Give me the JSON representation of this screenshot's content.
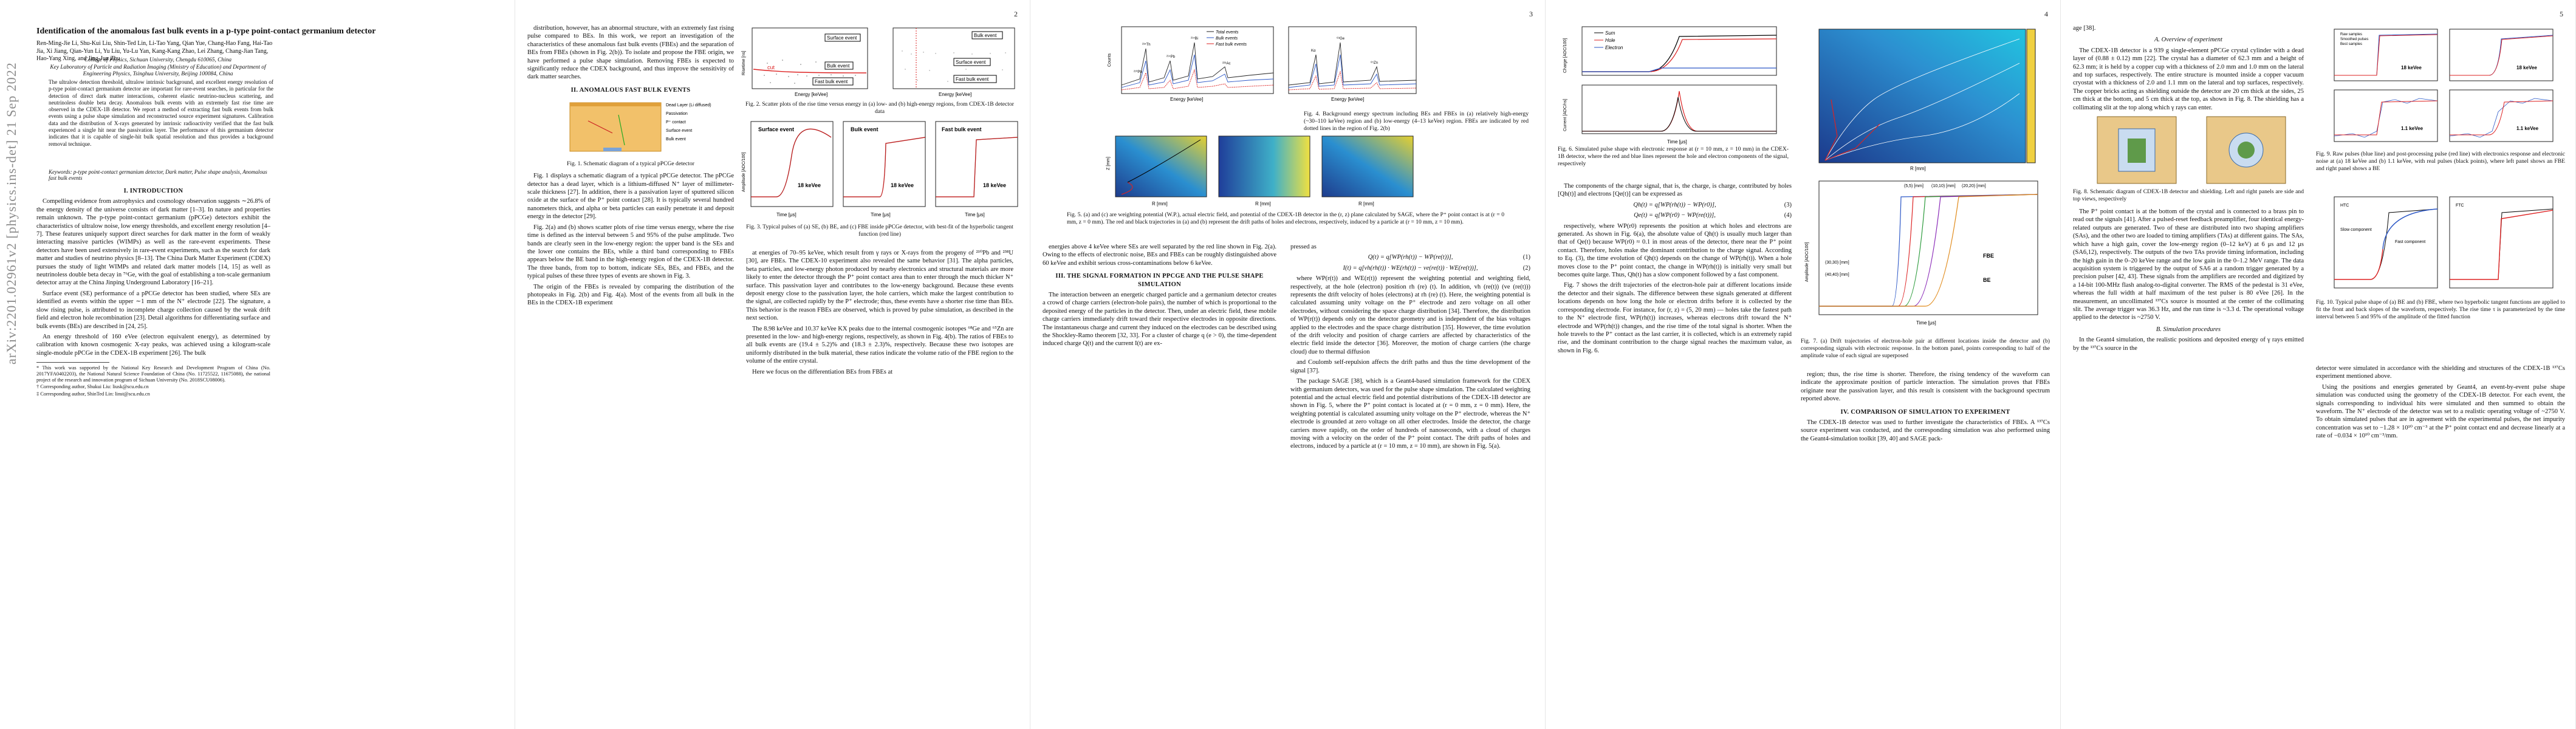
{
  "arxiv_stamp": "arXiv:2201.02961v2  [physics.ins-det]  21 Sep 2022",
  "page_numbers": [
    "",
    "2",
    "3",
    "4",
    "5"
  ],
  "p1": {
    "title": "Identification of the anomalous fast bulk events in a p-type point-contact germanium detector",
    "authors": "Ren-Ming-Jie Li, Shu-Kui Liu, Shin-Ted Lin, Li-Tao Yang, Qian Yue, Chang-Hao Fang, Hai-Tao Jia, Xi Jiang, Qian-Yun Li, Yu Liu, Yu-Lu Yan, Kang-Kang Zhao, Lei Zhang, Chang-Jian Tang, Hao-Yang Xing, and Jing-Jun Zhu",
    "affil1": "College of Physics, Sichuan University, Chengdu 610065, China",
    "affil2": "Key Laboratory of Particle and Radiation Imaging (Ministry of Education) and Department of Engineering Physics, Tsinghua University, Beijing 100084, China",
    "abstract": "The ultralow detection threshold, ultralow intrinsic background, and excellent energy resolution of p-type point-contact germanium detector are important for rare-event searches, in particular for the detection of direct dark matter interactions, coherent elastic neutrino-nucleus scattering, and neutrinoless double beta decay. Anomalous bulk events with an extremely fast rise time are observed in the CDEX-1B detector. We report a method of extracting fast bulk events from bulk events using a pulse shape simulation and reconstructed source experiment signatures. Calibration data and the distribution of X-rays generated by intrinsic radioactivity verified that the fast bulk experienced a single hit near the passivation layer. The performance of this germanium detector indicates that it is capable of single-hit bulk spatial resolution and thus provides a background removal technique.",
    "keywords": "Keywords: p-type point-contact germanium detector, Dark matter, Pulse shape analysis, Anomalous fast bulk events",
    "sec1": "I.   INTRODUCTION",
    "intro1": "Compelling evidence from astrophysics and cosmology observation suggests ∼26.8% of the energy density of the universe consists of dark matter [1–3]. In nature and properties remain unknown. The p-type point-contact germanium (pPCGe) detectors exhibit the characteristics of ultralow noise, low energy thresholds, and excellent energy resolution [4–7]. These features uniquely support direct searches for dark matter in the form of weakly interacting massive particles (WIMPs) as well as the rare-event experiments. These detectors have been used extensively in rare-event experiments, such as the search for dark matter and studies of neutrino physics [8–13]. The China Dark Matter Experiment (CDEX) pursues the study of light WIMPs and related dark matter models [14, 15] as well as neutrinoless double beta decay in ⁷⁶Ge, with the goal of establishing a ton-scale germanium detector array at the China Jinping Underground Laboratory [16–21].",
    "intro2": "Surface event (SE) performance of a pPCGe detector has been studied, where SEs are identified as events within the upper ∼1 mm of the N⁺ electrode [22]. The signature, a slow rising pulse, is attributed to incomplete charge collection caused by the weak drift field and electron hole recombination [23]. Detail algorithms for differentiating surface and bulk events (BEs) are described in [24, 25].",
    "intro3": "An energy threshold of 160 eVee (electron equivalent energy), as determined by calibration with known cosmogenic X-ray peaks, was achieved using a kilogram-scale single-module pPCGe in the CDEX-1B experiment [26]. The bulk",
    "footnote1": "* This work was supported by the National Key Research and Development Program of China (No. 2017YFA0402203), the National Natural Science Foundation of China (No. 11725522, 11675088), the national project of the research and innovation program of Sichuan University (No. 2018SCU08006).",
    "footnote2": "† Corresponding author, Shukui Liu: liusk@scu.edu.cn",
    "footnote3": "‡ Corresponding author, ShinTed Lin: linst@scu.edu.cn"
  },
  "p2": {
    "fig2_a_labels": [
      "Surface event",
      "cut",
      "Bulk event",
      "Fast bulk event"
    ],
    "fig2_b_labels": [
      "Bulk event",
      "Surface event",
      "Fast bulk event"
    ],
    "fig2_xlabel": "Energy [keVee]",
    "fig2_ylabel": "Risetime [ns]",
    "fig2_caption": "Fig. 2. Scatter plots of the rise time versus energy in (a) low- and (b) high-energy regions, from CDEX-1B detector data",
    "fig3_labels": [
      "Surface event",
      "Bulk event",
      "Fast bulk event"
    ],
    "fig3_energy": "18 keVee",
    "fig3_xlabel": "Time [μs]",
    "fig3_ylabel": "Amplitude [ADC/100]",
    "fig3_caption": "Fig. 3. Typical pulses of (a) SE, (b) BE, and (c) FBE inside pPCGe detector, with best-fit of the hyperbolic tangent function (red line)",
    "intro4": "distribution, however, has an abnormal structure, with an extremely fast rising pulse compared to BEs. In this work, we report an investigation of the characteristics of these anomalous fast bulk events (FBEs) and the separation of BEs from FBEs (shown in Fig. 2(b)). To isolate and propose the FBE origin, we have performed a pulse shape simulation. Removing FBEs is expected to significantly reduce the CDEX background, and thus improve the sensitivity of dark matter searches.",
    "sec2": "II.   ANOMALOUS FAST BULK EVENTS",
    "fig1_labels": [
      "Dead Layer (Li diffused)",
      "Passivation",
      "P⁺ contact",
      "Surface event",
      "Bulk event"
    ],
    "fig1_caption": "Fig. 1. Schematic diagram of a typical pPCGe detector",
    "sec2_p1": "Fig. 1 displays a schematic diagram of a typical pPCGe detector. The pPCGe detector has a dead layer, which is a lithium-diffused N⁺ layer of millimeter-scale thickness [27]. In addition, there is a passivation layer of sputtered silicon oxide at the surface of the P⁺ point contact [28]. It is typically several hundred nanometers thick, and alpha or beta particles can easily penetrate it and deposit energy in the detector [29].",
    "sec2_p2": "Fig. 2(a) and (b) shows scatter plots of rise time versus energy, where the rise time is defined as the interval between 5 and 95% of the pulse amplitude. Two bands are clearly seen in the low-energy region: the upper band is the SEs and the lower one contains the BEs, while a third band corresponding to FBEs appears below the BE band in the high-energy region of the CDEX-1B detector. The three bands, from top to bottom, indicate SEs, BEs, and FBEs, and the typical pulses of these three types of events are shown in Fig. 3.",
    "sec2_p3": "The origin of the FBEs is revealed by comparing the distribution of the photopeaks in Fig. 2(b) and Fig. 4(a). Most of the events from all bulk in the BEs in the CDEX-1B experiment",
    "col2_p1": "at energies of 70–95 keVee, which result from γ rays or X-rays from the progeny of ²¹⁰Pb and ²³⁸U [30], are FBEs. The CDEX-10 experiment also revealed the same behavior [31]. The alpha particles, beta particles, and low-energy photon produced by nearby electronics and structural materials are more likely to enter the detector through the P⁺ point contact area than to enter through the much thicker N⁺ surface. This passivation layer and contributes to the low-energy background. Because these events deposit energy close to the passivation layer, the hole carriers, which make the largest contribution to the signal, are collected rapidly by the P⁺ electrode; thus, these events have a shorter rise time than BEs. This behavior is the reason FBEs are observed, which is proved by pulse simulation, as described in the next section.",
    "col2_p2": "The 8.98 keVee and 10.37 keVee KX peaks due to the internal cosmogenic isotopes ⁶⁸Ge and ⁶⁵Zn are presented in the low- and high-energy regions, respectively, as shown in Fig. 4(b). The ratios of FBEs to all bulk events are (19.4 ± 5.2)% and (18.3 ± 2.3)%, respectively. Because these two isotopes are uniformly distributed in the bulk material, these ratios indicate the volume ratio of the FBE region to the volume of the entire crystal.",
    "col2_p3": "Here we focus on the differentiation BEs from FBEs at"
  },
  "p3": {
    "fig4_legend": [
      "Total events",
      "Bulk events",
      "Fast bulk events"
    ],
    "fig4_peaks": [
      "²¹⁰Pb",
      "²³⁴Th",
      "²¹⁴Pb",
      "²¹⁴Bi",
      "²²⁸Ac",
      "Kα",
      "Kβ",
      "⁶⁸Ge",
      "⁶⁵Zn",
      "Ga/Ge KX"
    ],
    "fig4_xlabel": "Energy [keVee]",
    "fig4_ylabel": "Counts",
    "fig4_caption": "Fig. 4. Background energy spectrum including BEs and FBEs in (a) relatively high-energy (~30–110 keVee) region and (b) low-energy (4–13 keVee) region. FBEs are indicated by red dotted lines in the region of Fig. 2(b)",
    "fig5_xlabel": "R [mm]",
    "fig5_ylabel": "Z [mm]",
    "fig5_caption": "Fig. 5. (a) and (c) are weighting potential (W.P.), actual electric field, and potential of the CDEX-1B detector in the (r, z) plane calculated by SAGE, where the P⁺ point contact is at (r = 0 mm, z = 0 mm). The red and black trajectories in (a) and (b) represent the drift paths of holes and electrons, respectively, induced by a particle at (r = 10 mm, z = 10 mm).",
    "col1_p1": "energies above 4 keVee where SEs are well separated by the red line shown in Fig. 2(a). Owing to the effects of electronic noise, BEs and FBEs can be roughly distinguished above 60 keVee and exhibit serious cross-contaminations below 6 keVee.",
    "sec3": "III.   THE SIGNAL FORMATION IN PPCGE AND THE PULSE SHAPE SIMULATION",
    "col1_p2": "The interaction between an energetic charged particle and a germanium detector creates a crowd of charge carriers (electron-hole pairs), the number of which is proportional to the deposited energy of the particles in the detector. Then, under an electric field, these mobile charge carriers immediately drift toward their respective electrodes in opposite directions. The instantaneous charge and current they induced on the electrodes can be described using the Shockley-Ramo theorem [32, 33]. For a cluster of charge q (e > 0), the time-dependent induced charge Q(t) and the current I(t) are ex-",
    "col2_p1": "pressed as",
    "eq1": "Q(t) = q[WP(rh(t)) − WP(re(t))],",
    "eq2": "I(t) = q[vh(rh(t)) · WE(rh(t)) − ve(re(t)) · WE(re(t))],",
    "col2_p2": "where WP(r(t)) and WE(r(t)) represent the weighting potential and weighting field, respectively, at the hole (electron) position rh (re) (t). In addition, vh (re(t)) (ve (re(t))) represents the drift velocity of holes (electrons) at rh (re) (t). Here, the weighting potential is calculated assuming unity voltage on the P⁺ electrode and zero voltage on all other electrodes, without considering the space charge distribution [34]. Therefore, the distribution of WP(r(t)) depends only on the detector geometry and is independent of the bias voltages applied to the electrodes and the space charge distribution [35]. However, the time evolution of the drift velocity and position of charge carriers are affected by characteristics of the electric field inside the detector [36]. Moreover, the motion of charge carriers (the charge cloud) due to thermal diffusion",
    "col2_p3": "and Coulomb self-repulsion affects the drift paths and thus the time development of the signal [37].",
    "col2_p4": "The package SAGE [38], which is a Geant4-based simulation framework for the CDEX with germanium detectors, was used for the pulse shape simulation. The calculated weighting potential and the actual electric field and potential distributions of the CDEX-1B detector are shown in Fig. 5, where the P⁺ point contact is located at (r = 0 mm, z = 0 mm). Here, the weighting potential is calculated assuming unity voltage on the P⁺ electrode, whereas the N⁺ electrode is grounded at zero voltage on all other electrodes. Inside the detector, the charge carriers move rapidly, on the order of hundreds of nanoseconds, with a cloud of charges moving with a velocity on the order of the P⁺ point contact. The drift paths of holes and electrons, induced by a particle at (r = 10 mm, z = 10 mm), are shown in Fig. 5(a)."
  },
  "p4": {
    "fig6_legend": [
      "Sum",
      "Hole",
      "Electron"
    ],
    "fig6_ylabel_top": "Charge [ADC/100]",
    "fig6_ylabel_bottom": "Current [ADC/ns]",
    "fig6_xlabel": "Time [μs]",
    "fig6_caption": "Fig. 6. Simulated pulse shape with electronic response at (r = 10 mm, z = 10 mm) in the CDEX-1B detector, where the red and blue lines represent the hole and electron components of the signal, respectively",
    "col1_p1": "The components of the charge signal, that is, the charge, is charge, contributed by holes [Qh(t)] and electrons [Qe(t)] can be expressed as",
    "eq3": "Qh(t) = q[WP(rh(t)) − WP(r0)],",
    "eq4": "Qe(t) = q[WP(r0) − WP(re(t))],",
    "col1_p2": "respectively, where WP(r0) represents the position at which holes and electrons are generated. As shown in Fig. 6(a), the absolute value of Qh(t) is usually much larger than that of Qe(t) because WP(r0) ≈ 0.1 in most areas of the detector, there near the P⁺ point contact. Therefore, holes make the dominant contribution to the charge signal. According to Eq. (3), the time evolution of Qh(t) depends on the change of WP(rh(t)). When a hole moves close to the P⁺ point contact, the change in WP(rh(t)) is initially very small but becomes quite large. Thus, Qh(t) has a slow component followed by a fast component.",
    "col1_p3": "Fig. 7 shows the drift trajectories of the electron-hole pair at different locations inside the detector and their signals. The difference between these signals generated at different locations depends on how long the hole or electron drifts before it is collected by the corresponding electrode. For instance, for (r, z) = (5, 20 mm) — holes take the fastest path to the N⁺ electrode first, WP(rh(t)) increases, whereas electrons drift toward the N⁺ electrode and WP(rh(t)) changes, and the rise time of the total signal is shorter. When the hole travels to the P⁺ contact as the last carrier, it is collected, which is an extremely rapid rise, and the dominant contribution to the charge signal reaches the maximum value, as shown in Fig. 6.",
    "fig7_legend_a": [
      "(5,5) [mm]",
      "(10,10) [mm]",
      "(20,20) [mm]",
      "(30,30) [mm]",
      "(40,40) [mm]"
    ],
    "fig7_labels": [
      "FBE",
      "BE"
    ],
    "fig7_xlabel": "Time [μs]",
    "fig7_ylabel": "Amplitude [ADC/100]",
    "fig7_caption": "Fig. 7. (a) Drift trajectories of electron-hole pair at different locations inside the detector and (b) corresponding signals with electronic response. In the bottom panel, points corresponding to half of the amplitude value of each signal are superposed",
    "col2_p1": "region; thus, the rise time is shorter. Therefore, the rising tendency of the waveform can indicate the approximate position of particle interaction. The simulation proves that FBEs originate near the passivation layer, and this result is consistent with the background spectrum reported above.",
    "sec4": "IV.   COMPARISON OF SIMULATION TO EXPERIMENT",
    "col2_p2": "The CDEX-1B detector was used to further investigate the characteristics of FBEs. A ¹³⁷Cs source experiment was conducted, and the corresponding simulation was also performed using the Geant4-simulation toolkit [39, 40] and SAGE pack-"
  },
  "p5": {
    "col1_p0": "age [38].",
    "subsecA": "A.   Overview of experiment",
    "col1_p1": "The CDEX-1B detector is a 939 g single-element pPCGe crystal cylinder with a dead layer of (0.88 ± 0.12) mm [22]. The crystal has a diameter of 62.3 mm and a height of 62.3 mm; it is held by a copper cup with a thickness of 2.0 mm and 1.0 mm on the lateral and top surfaces, respectively. The entire structure is mounted inside a copper vacuum cryostat with a thickness of 2.0 and 1.1 mm on the lateral and top surfaces, respectively. The copper bricks acting as shielding outside the detector are 20 cm thick at the sides, 25 cm thick at the bottom, and 5 cm thick at the top, as shown in Fig. 8. The shielding has a collimating slit at the top along which γ rays can enter.",
    "fig8_caption": "Fig. 8. Schematic diagram of CDEX-1B detector and shielding. Left and right panels are side and top views, respectively",
    "col1_p2": "The P⁺ point contact is at the bottom of the crystal and is connected to a brass pin to read out the signals [41]. After a pulsed-reset feedback preamplifier, four identical energy-related outputs are generated. Two of these are distributed into two shaping amplifiers (SAs), and the other two are loaded to timing amplifiers (TAs) at different gains. The SAs, which have a high gain, cover the low-energy region (0–12 keV) at 6 μs and 12 μs (SA6,12), respectively. The outputs of the two TAs provide timing information, including the high gain in the 0–20 keVee range and the low gain in the 0–1.2 MeV range. The data acquisition system is triggered by the output of SA6 at a random trigger generated by a precision pulser [42, 43]. These signals from the amplifiers are recorded and digitized by a 14-bit 100-MHz flash analog-to-digital converter. The RMS of the pedestal is 31 eVee, whereas the full width at half maximum of the test pulser is 80 eVee [26]. In the measurement, an uncollimated ¹³⁷Cs source is mounted at the center of the collimating slit. The average trigger was 36.3 Hz, and the run time is ~3.3 d. The operational voltage applied to the detector is ~2750 V.",
    "subsecB": "B.   Simulation procedures",
    "col1_p3": "In the Geant4 simulation, the realistic positions and deposited energy of γ rays emitted by the ¹³⁷Cs source in the",
    "fig9_legend": [
      "Raw samples",
      "Smoothed pulses",
      "Best samples"
    ],
    "fig9_energies": [
      "18 keVee",
      "18 keVee",
      "1.1 keVee",
      "1.1 keVee"
    ],
    "fig9_caption": "Fig. 9. Raw pulses (blue line) and post-processing pulse (red line) with electronics response and electronic noise at (a) 18 keVee and (b) 1.1 keVee, with real pulses (black points), where left panel shows an FBE and right panel shows a BE",
    "fig10_labels": [
      "HTC",
      "Slow component",
      "Fast component",
      "FTC"
    ],
    "fig10_caption": "Fig. 10. Typical pulse shape of (a) BE and (b) FBE, where two hyperbolic tangent functions are applied to fit the front and back slopes of the waveform, respectively. The rise time τ is parameterized by the time interval between 5 and 95% of the amplitude of the fitted function",
    "col2_p1": "detector were simulated in accordance with the shielding and structures of the CDEX-1B ¹³⁷Cs experiment mentioned above.",
    "col2_p2": "Using the positions and energies generated by Geant4, an event-by-event pulse shape simulation was conducted using the geometry of the CDEX-1B detector. For each event, the signals corresponding to individual hits were simulated and then summed to obtain the waveform. The N⁺ electrode of the detector was set to a realistic operating voltage of ~2750 V. To obtain simulated pulses that are in agreement with the experimental pulses, the net impurity concentration was set to −1.28 × 10¹⁰ cm⁻³ at the P⁺ point contact end and decrease linearly at a rate of −0.034 × 10¹⁰ cm⁻³/mm."
  }
}
